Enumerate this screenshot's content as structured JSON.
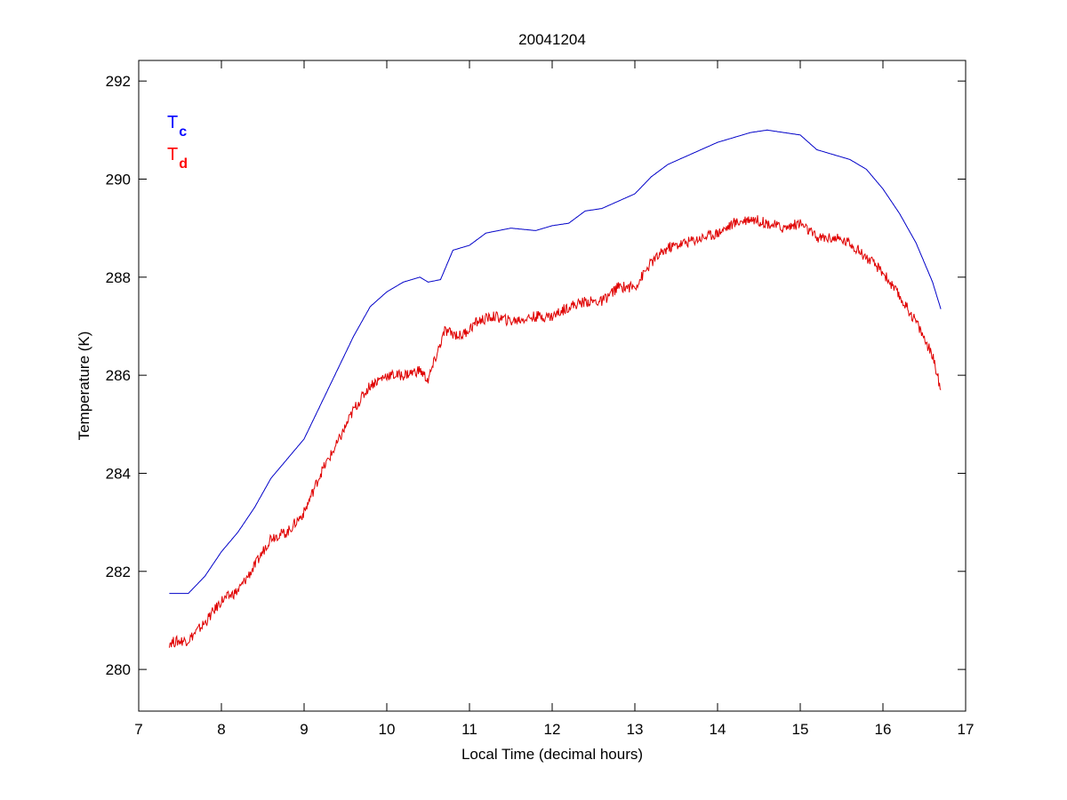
{
  "chart_data": {
    "type": "line",
    "title": "20041204",
    "xlabel": "Local Time (decimal hours)",
    "ylabel": "Temperature (K)",
    "xlim": [
      7,
      17
    ],
    "ylim": [
      279.15,
      292.42
    ],
    "xticks": [
      7,
      8,
      9,
      10,
      11,
      12,
      13,
      14,
      15,
      16,
      17
    ],
    "yticks": [
      280,
      282,
      284,
      286,
      288,
      290,
      292
    ],
    "grid": false,
    "legend": {
      "placement": "top-left",
      "entries": [
        {
          "main": "T",
          "sub": "c",
          "color": "#0000ff"
        },
        {
          "main": "T",
          "sub": "d",
          "color": "#ff0000"
        }
      ]
    },
    "series": [
      {
        "name": "Tc",
        "color": "#0000c8",
        "x": [
          7.37,
          7.6,
          7.8,
          8.0,
          8.2,
          8.4,
          8.6,
          8.8,
          9.0,
          9.2,
          9.4,
          9.6,
          9.8,
          10.0,
          10.2,
          10.4,
          10.5,
          10.65,
          10.8,
          11.0,
          11.2,
          11.5,
          11.8,
          12.0,
          12.2,
          12.4,
          12.6,
          12.8,
          13.0,
          13.2,
          13.4,
          13.6,
          13.8,
          14.0,
          14.2,
          14.4,
          14.6,
          14.8,
          15.0,
          15.2,
          15.4,
          15.6,
          15.8,
          16.0,
          16.2,
          16.4,
          16.6,
          16.7
        ],
        "y": [
          281.55,
          281.55,
          281.9,
          282.4,
          282.8,
          283.3,
          283.9,
          284.3,
          284.7,
          285.4,
          286.1,
          286.8,
          287.4,
          287.7,
          287.9,
          288.0,
          287.9,
          287.95,
          288.55,
          288.65,
          288.9,
          289.0,
          288.95,
          289.05,
          289.1,
          289.35,
          289.4,
          289.55,
          289.7,
          290.05,
          290.3,
          290.45,
          290.6,
          290.75,
          290.85,
          290.95,
          291.0,
          290.95,
          290.9,
          290.6,
          290.5,
          290.4,
          290.2,
          289.8,
          289.3,
          288.7,
          287.9,
          287.35
        ]
      },
      {
        "name": "Td",
        "color": "#e00000",
        "x": [
          7.37,
          7.6,
          7.8,
          8.0,
          8.2,
          8.4,
          8.6,
          8.8,
          9.0,
          9.2,
          9.4,
          9.6,
          9.8,
          10.0,
          10.2,
          10.4,
          10.5,
          10.7,
          10.9,
          11.1,
          11.3,
          11.5,
          11.8,
          12.0,
          12.2,
          12.4,
          12.6,
          12.8,
          13.0,
          13.2,
          13.4,
          13.6,
          13.8,
          14.0,
          14.2,
          14.4,
          14.6,
          14.8,
          15.0,
          15.2,
          15.4,
          15.6,
          15.8,
          16.0,
          16.2,
          16.4,
          16.6,
          16.7
        ],
        "y": [
          280.55,
          280.6,
          280.95,
          281.4,
          281.6,
          282.1,
          282.7,
          282.8,
          283.2,
          284.0,
          284.6,
          285.3,
          285.8,
          286.0,
          286.0,
          286.1,
          285.9,
          286.9,
          286.8,
          287.1,
          287.2,
          287.1,
          287.2,
          287.2,
          287.4,
          287.5,
          287.5,
          287.8,
          287.8,
          288.3,
          288.6,
          288.7,
          288.8,
          288.9,
          289.1,
          289.2,
          289.1,
          289.0,
          289.1,
          288.8,
          288.8,
          288.7,
          288.4,
          288.1,
          287.6,
          287.1,
          286.4,
          285.7
        ]
      }
    ]
  }
}
